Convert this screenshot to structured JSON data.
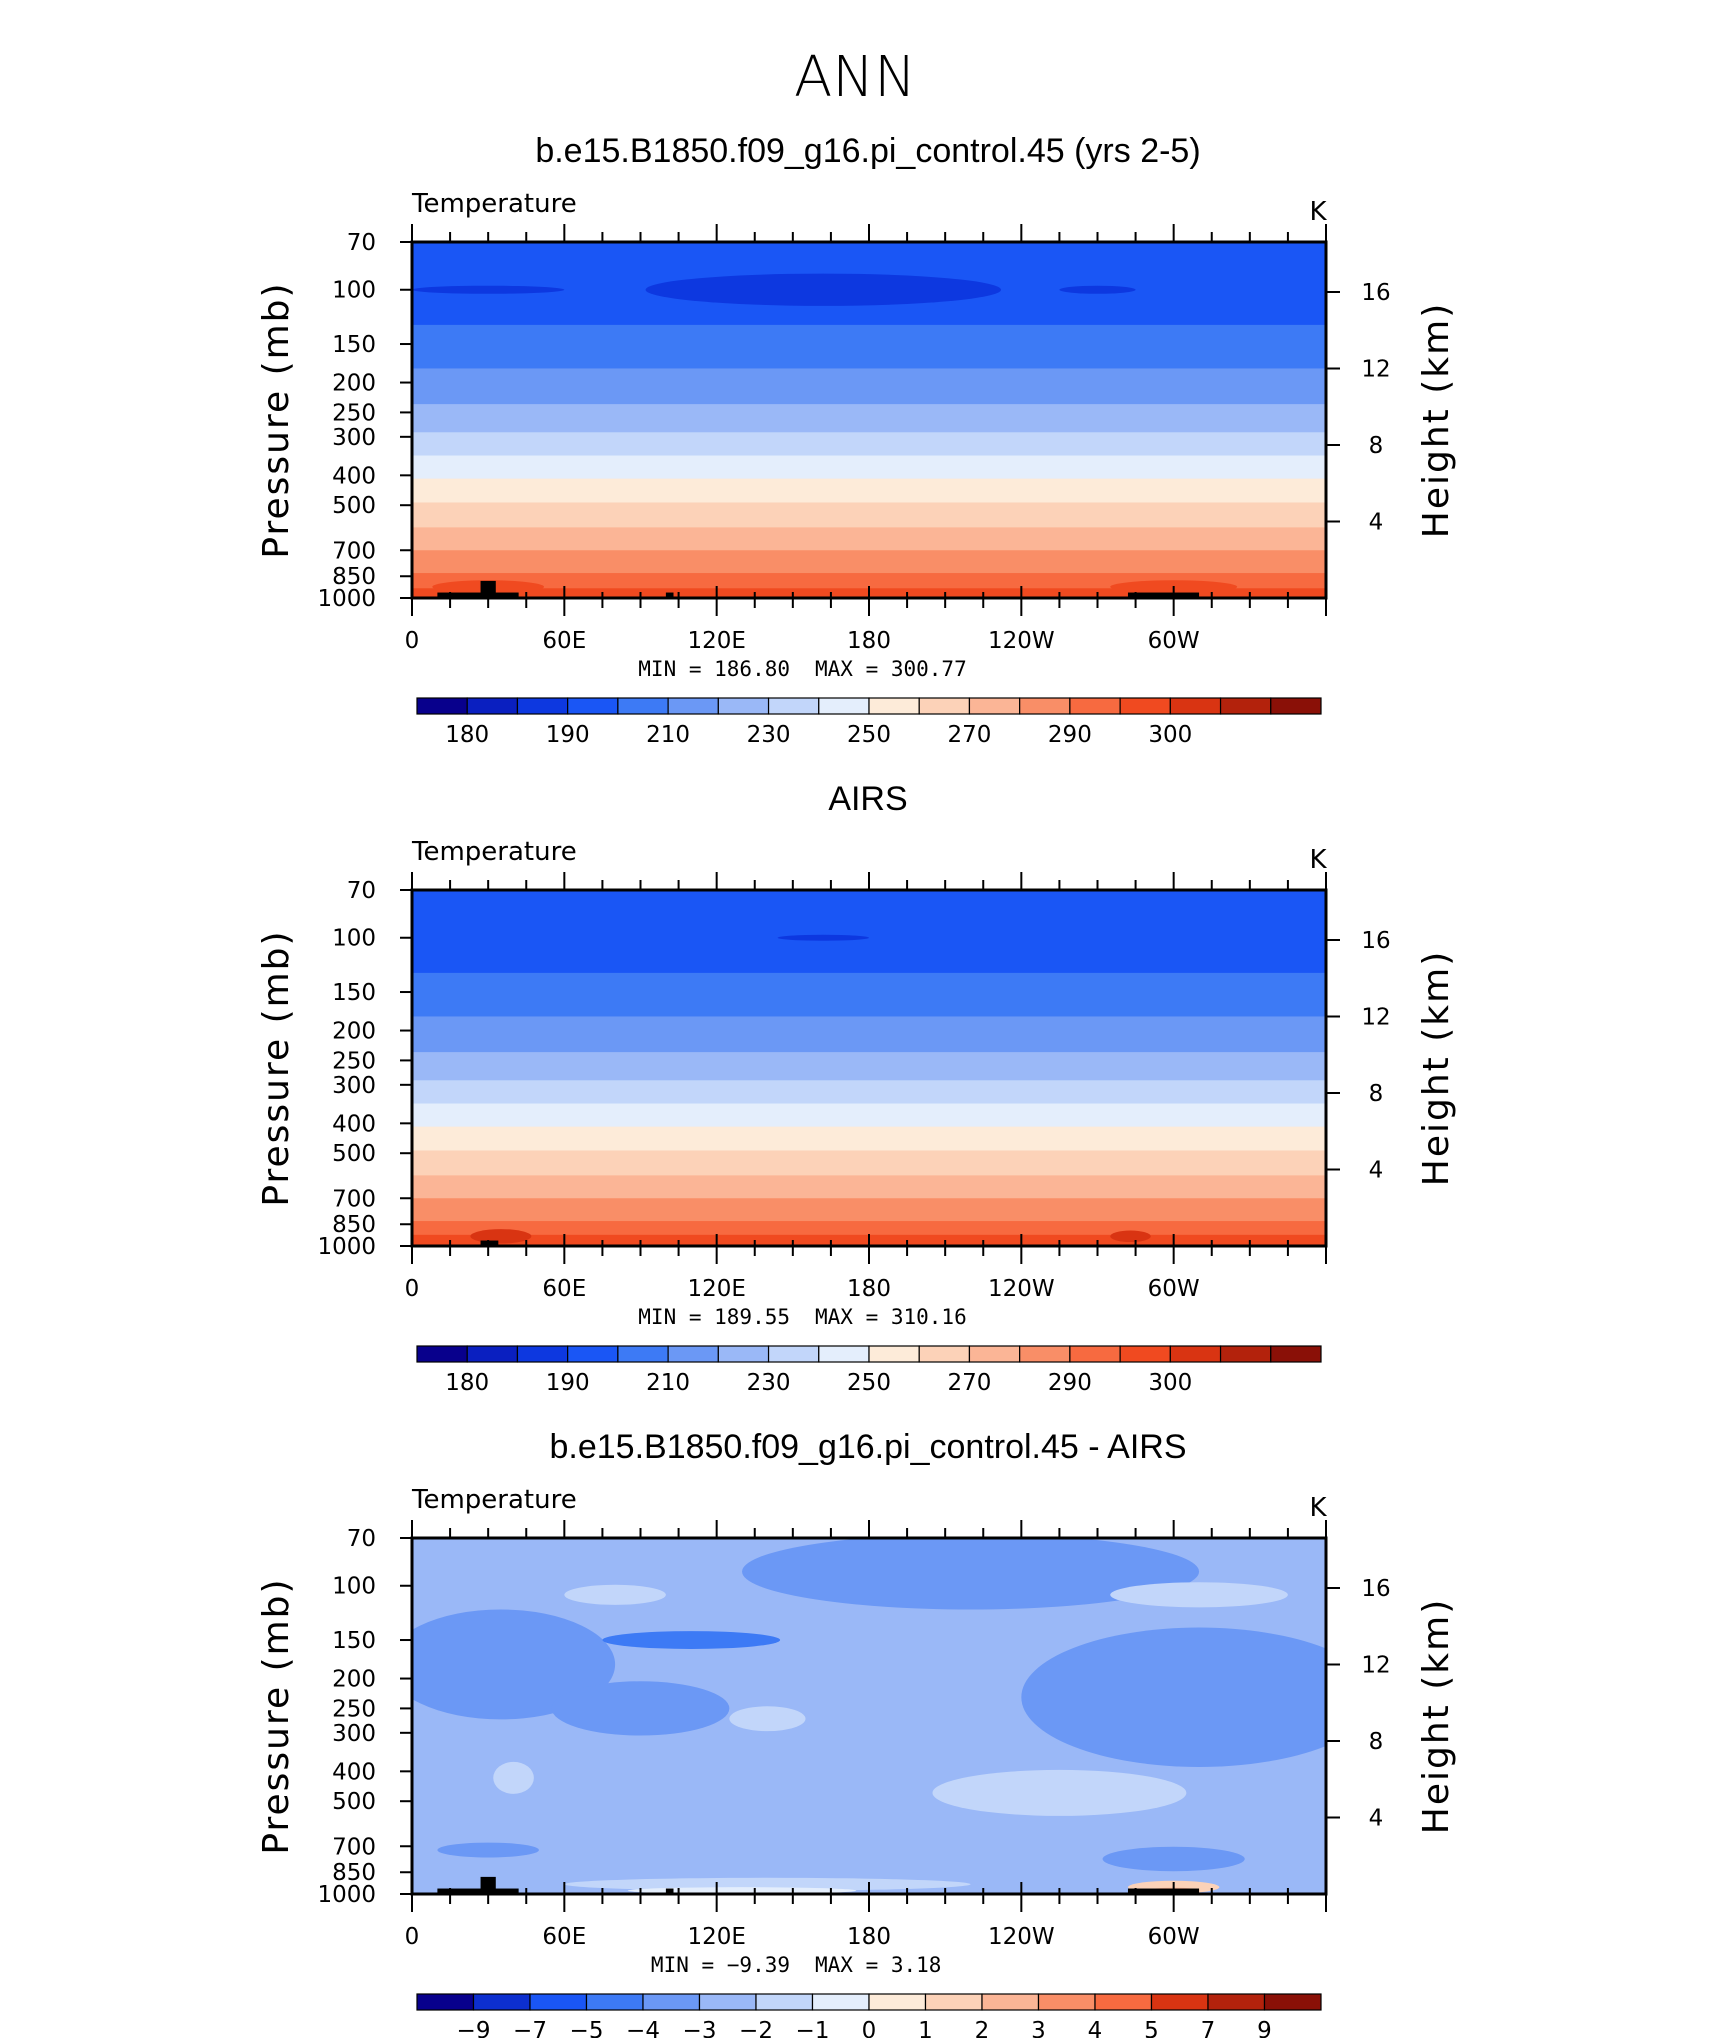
{
  "figure": {
    "title": "ANN"
  },
  "colorbar_colors": [
    "#08008c",
    "#0a1fc0",
    "#0d38e0",
    "#1a56f5",
    "#3d7af5",
    "#6b98f5",
    "#9ab8f7",
    "#c2d6fa",
    "#e4eefc",
    "#fdebd9",
    "#fcd2b8",
    "#fbb596",
    "#f98e67",
    "#f76a40",
    "#f04a20",
    "#d93412",
    "#b3220c",
    "#8a1007"
  ],
  "chart_data": [
    {
      "type": "heatmap",
      "panel_id": "model",
      "title": "b.e15.B1850.f09_g16.pi_control.45 (yrs 2-5)",
      "variable_label": "Temperature",
      "units_label": "K",
      "ylabel": "Pressure (mb)",
      "right_ylabel": "Height (km)",
      "x_ticks": [
        {
          "lon": 0,
          "label": "0"
        },
        {
          "lon": 60,
          "label": "60E"
        },
        {
          "lon": 120,
          "label": "120E"
        },
        {
          "lon": 180,
          "label": "180"
        },
        {
          "lon": 240,
          "label": "120W"
        },
        {
          "lon": 300,
          "label": "60W"
        }
      ],
      "p_ticks": [
        70,
        100,
        150,
        200,
        250,
        300,
        400,
        500,
        700,
        850,
        1000
      ],
      "height_ticks_km": [
        16,
        12,
        8,
        4
      ],
      "ylim_mb": [
        70,
        1000
      ],
      "xlim_lon": [
        0,
        360
      ],
      "min_label": "MIN = 186.80",
      "max_label": "MAX = 300.77",
      "min": 186.8,
      "max": 300.77,
      "colorbar_labels": [
        "180",
        "190",
        "210",
        "230",
        "250",
        "270",
        "290",
        "300"
      ],
      "bands": [
        {
          "p_top": 70,
          "p_bot": 130,
          "level": 3
        },
        {
          "p_top": 130,
          "p_bot": 180,
          "level": 4
        },
        {
          "p_top": 180,
          "p_bot": 235,
          "level": 5
        },
        {
          "p_top": 235,
          "p_bot": 290,
          "level": 6
        },
        {
          "p_top": 290,
          "p_bot": 345,
          "level": 7
        },
        {
          "p_top": 345,
          "p_bot": 410,
          "level": 8
        },
        {
          "p_top": 410,
          "p_bot": 490,
          "level": 9
        },
        {
          "p_top": 490,
          "p_bot": 590,
          "level": 10
        },
        {
          "p_top": 590,
          "p_bot": 700,
          "level": 11
        },
        {
          "p_top": 700,
          "p_bot": 830,
          "level": 12
        },
        {
          "p_top": 830,
          "p_bot": 930,
          "level": 13
        },
        {
          "p_top": 930,
          "p_bot": 1000,
          "level": 14
        }
      ],
      "blobs": [
        {
          "lon": 162,
          "p": 100,
          "dlon": 70,
          "dp": 12,
          "level": 2
        },
        {
          "lon": 30,
          "p": 100,
          "dlon": 30,
          "dp": 3,
          "level": 2
        },
        {
          "lon": 270,
          "p": 100,
          "dlon": 15,
          "dp": 3,
          "level": 2
        },
        {
          "lon": 30,
          "p": 920,
          "dlon": 22,
          "dp": 45,
          "level": 14
        },
        {
          "lon": 300,
          "p": 920,
          "dlon": 25,
          "dp": 45,
          "level": 14
        }
      ],
      "topography": [
        {
          "lon0": 10,
          "lon1": 42,
          "p": 960
        },
        {
          "lon0": 27,
          "lon1": 33,
          "p": 880
        },
        {
          "lon0": 100,
          "lon1": 103,
          "p": 960
        },
        {
          "lon0": 282,
          "lon1": 310,
          "p": 960
        }
      ]
    },
    {
      "type": "heatmap",
      "panel_id": "obs",
      "title": "AIRS",
      "variable_label": "Temperature",
      "units_label": "K",
      "ylabel": "Pressure (mb)",
      "right_ylabel": "Height (km)",
      "x_ticks": [
        {
          "lon": 0,
          "label": "0"
        },
        {
          "lon": 60,
          "label": "60E"
        },
        {
          "lon": 120,
          "label": "120E"
        },
        {
          "lon": 180,
          "label": "180"
        },
        {
          "lon": 240,
          "label": "120W"
        },
        {
          "lon": 300,
          "label": "60W"
        }
      ],
      "p_ticks": [
        70,
        100,
        150,
        200,
        250,
        300,
        400,
        500,
        700,
        850,
        1000
      ],
      "height_ticks_km": [
        16,
        12,
        8,
        4
      ],
      "ylim_mb": [
        70,
        1000
      ],
      "xlim_lon": [
        0,
        360
      ],
      "min_label": "MIN = 189.55",
      "max_label": "MAX = 310.16",
      "min": 189.55,
      "max": 310.16,
      "colorbar_labels": [
        "180",
        "190",
        "210",
        "230",
        "250",
        "270",
        "290",
        "300"
      ],
      "bands": [
        {
          "p_top": 70,
          "p_bot": 130,
          "level": 3
        },
        {
          "p_top": 130,
          "p_bot": 180,
          "level": 4
        },
        {
          "p_top": 180,
          "p_bot": 235,
          "level": 5
        },
        {
          "p_top": 235,
          "p_bot": 290,
          "level": 6
        },
        {
          "p_top": 290,
          "p_bot": 345,
          "level": 7
        },
        {
          "p_top": 345,
          "p_bot": 410,
          "level": 8
        },
        {
          "p_top": 410,
          "p_bot": 490,
          "level": 9
        },
        {
          "p_top": 490,
          "p_bot": 590,
          "level": 10
        },
        {
          "p_top": 590,
          "p_bot": 700,
          "level": 11
        },
        {
          "p_top": 700,
          "p_bot": 830,
          "level": 12
        },
        {
          "p_top": 830,
          "p_bot": 920,
          "level": 13
        },
        {
          "p_top": 920,
          "p_bot": 1000,
          "level": 14
        }
      ],
      "blobs": [
        {
          "lon": 162,
          "p": 100,
          "dlon": 18,
          "dp": 2,
          "level": 2
        },
        {
          "lon": 35,
          "p": 930,
          "dlon": 12,
          "dp": 50,
          "level": 15
        },
        {
          "lon": 283,
          "p": 930,
          "dlon": 8,
          "dp": 40,
          "level": 15
        }
      ],
      "topography": [
        {
          "lon0": 27,
          "lon1": 34,
          "p": 960
        }
      ]
    },
    {
      "type": "heatmap",
      "panel_id": "diff",
      "title": "b.e15.B1850.f09_g16.pi_control.45 - AIRS",
      "variable_label": "Temperature",
      "units_label": "K",
      "ylabel": "Pressure (mb)",
      "right_ylabel": "Height (km)",
      "x_ticks": [
        {
          "lon": 0,
          "label": "0"
        },
        {
          "lon": 60,
          "label": "60E"
        },
        {
          "lon": 120,
          "label": "120E"
        },
        {
          "lon": 180,
          "label": "180"
        },
        {
          "lon": 240,
          "label": "120W"
        },
        {
          "lon": 300,
          "label": "60W"
        }
      ],
      "p_ticks": [
        70,
        100,
        150,
        200,
        250,
        300,
        400,
        500,
        700,
        850,
        1000
      ],
      "height_ticks_km": [
        16,
        12,
        8,
        4
      ],
      "ylim_mb": [
        70,
        1000
      ],
      "xlim_lon": [
        0,
        360
      ],
      "min_label": "MIN = −9.39",
      "max_label": "MAX = 3.18",
      "min": -9.39,
      "max": 3.18,
      "colorbar_labels": [
        "−9",
        "−7",
        "−5",
        "−4",
        "−3",
        "−2",
        "−1",
        "0",
        "1",
        "2",
        "3",
        "4",
        "5",
        "7",
        "9"
      ],
      "bands": [
        {
          "p_top": 70,
          "p_bot": 1000,
          "level": 5
        }
      ],
      "blobs": [
        {
          "lon": 220,
          "p": 90,
          "dlon": 90,
          "dp": 35,
          "level": 4
        },
        {
          "lon": 35,
          "p": 180,
          "dlon": 45,
          "dp": 70,
          "level": 4
        },
        {
          "lon": 310,
          "p": 230,
          "dlon": 70,
          "dp": 110,
          "level": 4
        },
        {
          "lon": 90,
          "p": 250,
          "dlon": 35,
          "dp": 50,
          "level": 4
        },
        {
          "lon": 110,
          "p": 150,
          "dlon": 35,
          "dp": 10,
          "level": 3
        },
        {
          "lon": 80,
          "p": 107,
          "dlon": 20,
          "dp": 8,
          "level": 6
        },
        {
          "lon": 310,
          "p": 107,
          "dlon": 35,
          "dp": 10,
          "level": 6
        },
        {
          "lon": 255,
          "p": 470,
          "dlon": 50,
          "dp": 80,
          "level": 6
        },
        {
          "lon": 40,
          "p": 420,
          "dlon": 8,
          "dp": 50,
          "level": 6
        },
        {
          "lon": 140,
          "p": 270,
          "dlon": 15,
          "dp": 25,
          "level": 6
        },
        {
          "lon": 30,
          "p": 720,
          "dlon": 20,
          "dp": 40,
          "level": 4
        },
        {
          "lon": 300,
          "p": 770,
          "dlon": 28,
          "dp": 70,
          "level": 4
        },
        {
          "lon": 140,
          "p": 930,
          "dlon": 80,
          "dp": 45,
          "level": 6
        },
        {
          "lon": 130,
          "p": 975,
          "dlon": 45,
          "dp": 25,
          "level": 7
        },
        {
          "lon": 300,
          "p": 950,
          "dlon": 18,
          "dp": 45,
          "level": 9
        },
        {
          "lon": 300,
          "p": 975,
          "dlon": 10,
          "dp": 20,
          "level": 10
        }
      ],
      "topography": [
        {
          "lon0": 10,
          "lon1": 42,
          "p": 960
        },
        {
          "lon0": 27,
          "lon1": 33,
          "p": 880
        },
        {
          "lon0": 100,
          "lon1": 103,
          "p": 960
        },
        {
          "lon0": 282,
          "lon1": 310,
          "p": 960
        }
      ]
    }
  ],
  "colorbar_diff_colors": [
    "#08008c",
    "#0d2fcf",
    "#1a56f5",
    "#3d7af5",
    "#6b98f5",
    "#9ab8f7",
    "#c2d6fa",
    "#e4eefc",
    "#fdebd9",
    "#fcd2b8",
    "#fbb596",
    "#f98e67",
    "#f76a40",
    "#d93412",
    "#b3220c",
    "#8a1007"
  ]
}
